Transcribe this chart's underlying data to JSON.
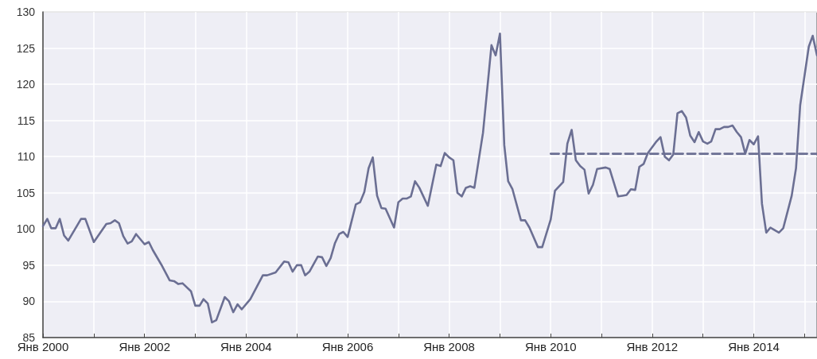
{
  "chart_data": {
    "type": "line",
    "marker": "none",
    "grid": true,
    "xlim": [
      "2000-01",
      "2015-04"
    ],
    "ylim": [
      85,
      130
    ],
    "yticks": [
      85,
      90,
      95,
      100,
      105,
      110,
      115,
      120,
      125,
      130
    ],
    "xticks": [
      {
        "value": "2000-01",
        "label": "Янв 2000"
      },
      {
        "value": "2001-01",
        "label": null
      },
      {
        "value": "2002-01",
        "label": "Янв 2002"
      },
      {
        "value": "2003-01",
        "label": null
      },
      {
        "value": "2004-01",
        "label": "Янв 2004"
      },
      {
        "value": "2005-01",
        "label": null
      },
      {
        "value": "2006-01",
        "label": "Янв 2006"
      },
      {
        "value": "2007-01",
        "label": null
      },
      {
        "value": "2008-01",
        "label": "Янв 2008"
      },
      {
        "value": "2009-01",
        "label": null
      },
      {
        "value": "2010-01",
        "label": "Янв 2010"
      },
      {
        "value": "2011-01",
        "label": null
      },
      {
        "value": "2012-01",
        "label": "Янв 2012"
      },
      {
        "value": "2013-01",
        "label": null
      },
      {
        "value": "2014-01",
        "label": "Янв 2014"
      },
      {
        "value": "2015-01",
        "label": null
      }
    ],
    "series": [
      {
        "color": "#6b6f93",
        "line_style": "solid",
        "x": [
          "2000-01",
          "2000-02",
          "2000-03",
          "2000-04",
          "2000-05",
          "2000-06",
          "2000-07",
          "2000-10",
          "2000-11",
          "2001-01",
          "2001-04",
          "2001-05",
          "2001-06",
          "2001-07",
          "2001-08",
          "2001-09",
          "2001-10",
          "2001-11",
          "2002-01",
          "2002-02",
          "2002-03",
          "2002-05",
          "2002-07",
          "2002-08",
          "2002-09",
          "2002-10",
          "2002-12",
          "2003-01",
          "2003-02",
          "2003-03",
          "2003-04",
          "2003-05",
          "2003-06",
          "2003-08",
          "2003-09",
          "2003-10",
          "2003-11",
          "2003-12",
          "2004-02",
          "2004-05",
          "2004-06",
          "2004-08",
          "2004-10",
          "2004-11",
          "2004-12",
          "2005-01",
          "2005-02",
          "2005-03",
          "2005-04",
          "2005-06",
          "2005-07",
          "2005-08",
          "2005-09",
          "2005-10",
          "2005-11",
          "2005-12",
          "2006-01",
          "2006-03",
          "2006-04",
          "2006-05",
          "2006-06",
          "2006-07",
          "2006-08",
          "2006-09",
          "2006-10",
          "2006-12",
          "2007-01",
          "2007-02",
          "2007-03",
          "2007-04",
          "2007-05",
          "2007-06",
          "2007-08",
          "2007-10",
          "2007-11",
          "2007-12",
          "2008-01",
          "2008-02",
          "2008-03",
          "2008-04",
          "2008-05",
          "2008-06",
          "2008-07",
          "2008-09",
          "2008-11",
          "2008-12",
          "2009-01",
          "2009-02",
          "2009-03",
          "2009-04",
          "2009-06",
          "2009-07",
          "2009-08",
          "2009-10",
          "2009-11",
          "2010-01",
          "2010-02",
          "2010-04",
          "2010-05",
          "2010-06",
          "2010-07",
          "2010-08",
          "2010-09",
          "2010-10",
          "2010-11",
          "2010-12",
          "2011-02",
          "2011-03",
          "2011-05",
          "2011-06",
          "2011-07",
          "2011-08",
          "2011-09",
          "2011-10",
          "2011-11",
          "2011-12",
          "2012-02",
          "2012-03",
          "2012-04",
          "2012-05",
          "2012-06",
          "2012-07",
          "2012-08",
          "2012-09",
          "2012-10",
          "2012-11",
          "2012-12",
          "2013-01",
          "2013-02",
          "2013-03",
          "2013-04",
          "2013-05",
          "2013-06",
          "2013-07",
          "2013-08",
          "2013-09",
          "2013-10",
          "2013-11",
          "2013-12",
          "2014-01",
          "2014-02",
          "2014-03",
          "2014-04",
          "2014-05",
          "2014-07",
          "2014-08",
          "2014-10",
          "2014-11",
          "2014-12",
          "2015-02",
          "2015-03",
          "2015-04"
        ],
        "values": [
          100.4,
          101.4,
          100.1,
          100.1,
          101.4,
          99.1,
          98.4,
          101.4,
          101.4,
          98.2,
          100.7,
          100.8,
          101.2,
          100.8,
          99.0,
          98.0,
          98.3,
          99.3,
          97.9,
          98.2,
          97.1,
          95.1,
          92.9,
          92.8,
          92.4,
          92.5,
          91.4,
          89.4,
          89.4,
          90.3,
          89.7,
          87.1,
          87.4,
          90.6,
          90.0,
          88.5,
          89.6,
          88.9,
          90.3,
          93.6,
          93.6,
          94.0,
          95.5,
          95.4,
          94.1,
          95.0,
          95.0,
          93.6,
          94.1,
          96.2,
          96.1,
          94.9,
          96.0,
          98.0,
          99.3,
          99.6,
          98.9,
          103.4,
          103.7,
          105.1,
          108.4,
          109.9,
          104.6,
          102.9,
          102.8,
          100.2,
          103.7,
          104.2,
          104.2,
          104.5,
          106.6,
          105.7,
          103.2,
          108.9,
          108.7,
          110.5,
          109.9,
          109.5,
          105.0,
          104.5,
          105.7,
          105.9,
          105.7,
          113.3,
          125.4,
          124.0,
          127.0,
          111.6,
          106.6,
          105.5,
          101.2,
          101.2,
          100.2,
          97.5,
          97.5,
          101.3,
          105.3,
          106.5,
          111.8,
          113.7,
          109.5,
          108.7,
          108.2,
          104.9,
          106.1,
          108.3,
          108.5,
          108.3,
          104.5,
          104.6,
          104.7,
          105.5,
          105.4,
          108.6,
          109.0,
          110.5,
          112.1,
          112.7,
          110.0,
          109.5,
          110.3,
          116.0,
          116.3,
          115.4,
          112.9,
          112.0,
          113.4,
          112.1,
          111.8,
          112.1,
          113.8,
          113.8,
          114.1,
          114.1,
          114.3,
          113.4,
          112.7,
          110.4,
          112.3,
          111.7,
          112.8,
          103.5,
          99.5,
          100.2,
          99.5,
          100.1,
          104.6,
          108.4,
          117.1,
          125.2,
          126.7,
          124.0
        ]
      },
      {
        "color": "#6b6f93",
        "line_style": "dashed",
        "x": [
          "2010-01",
          "2015-04"
        ],
        "values": [
          110.4,
          110.4
        ]
      }
    ]
  }
}
